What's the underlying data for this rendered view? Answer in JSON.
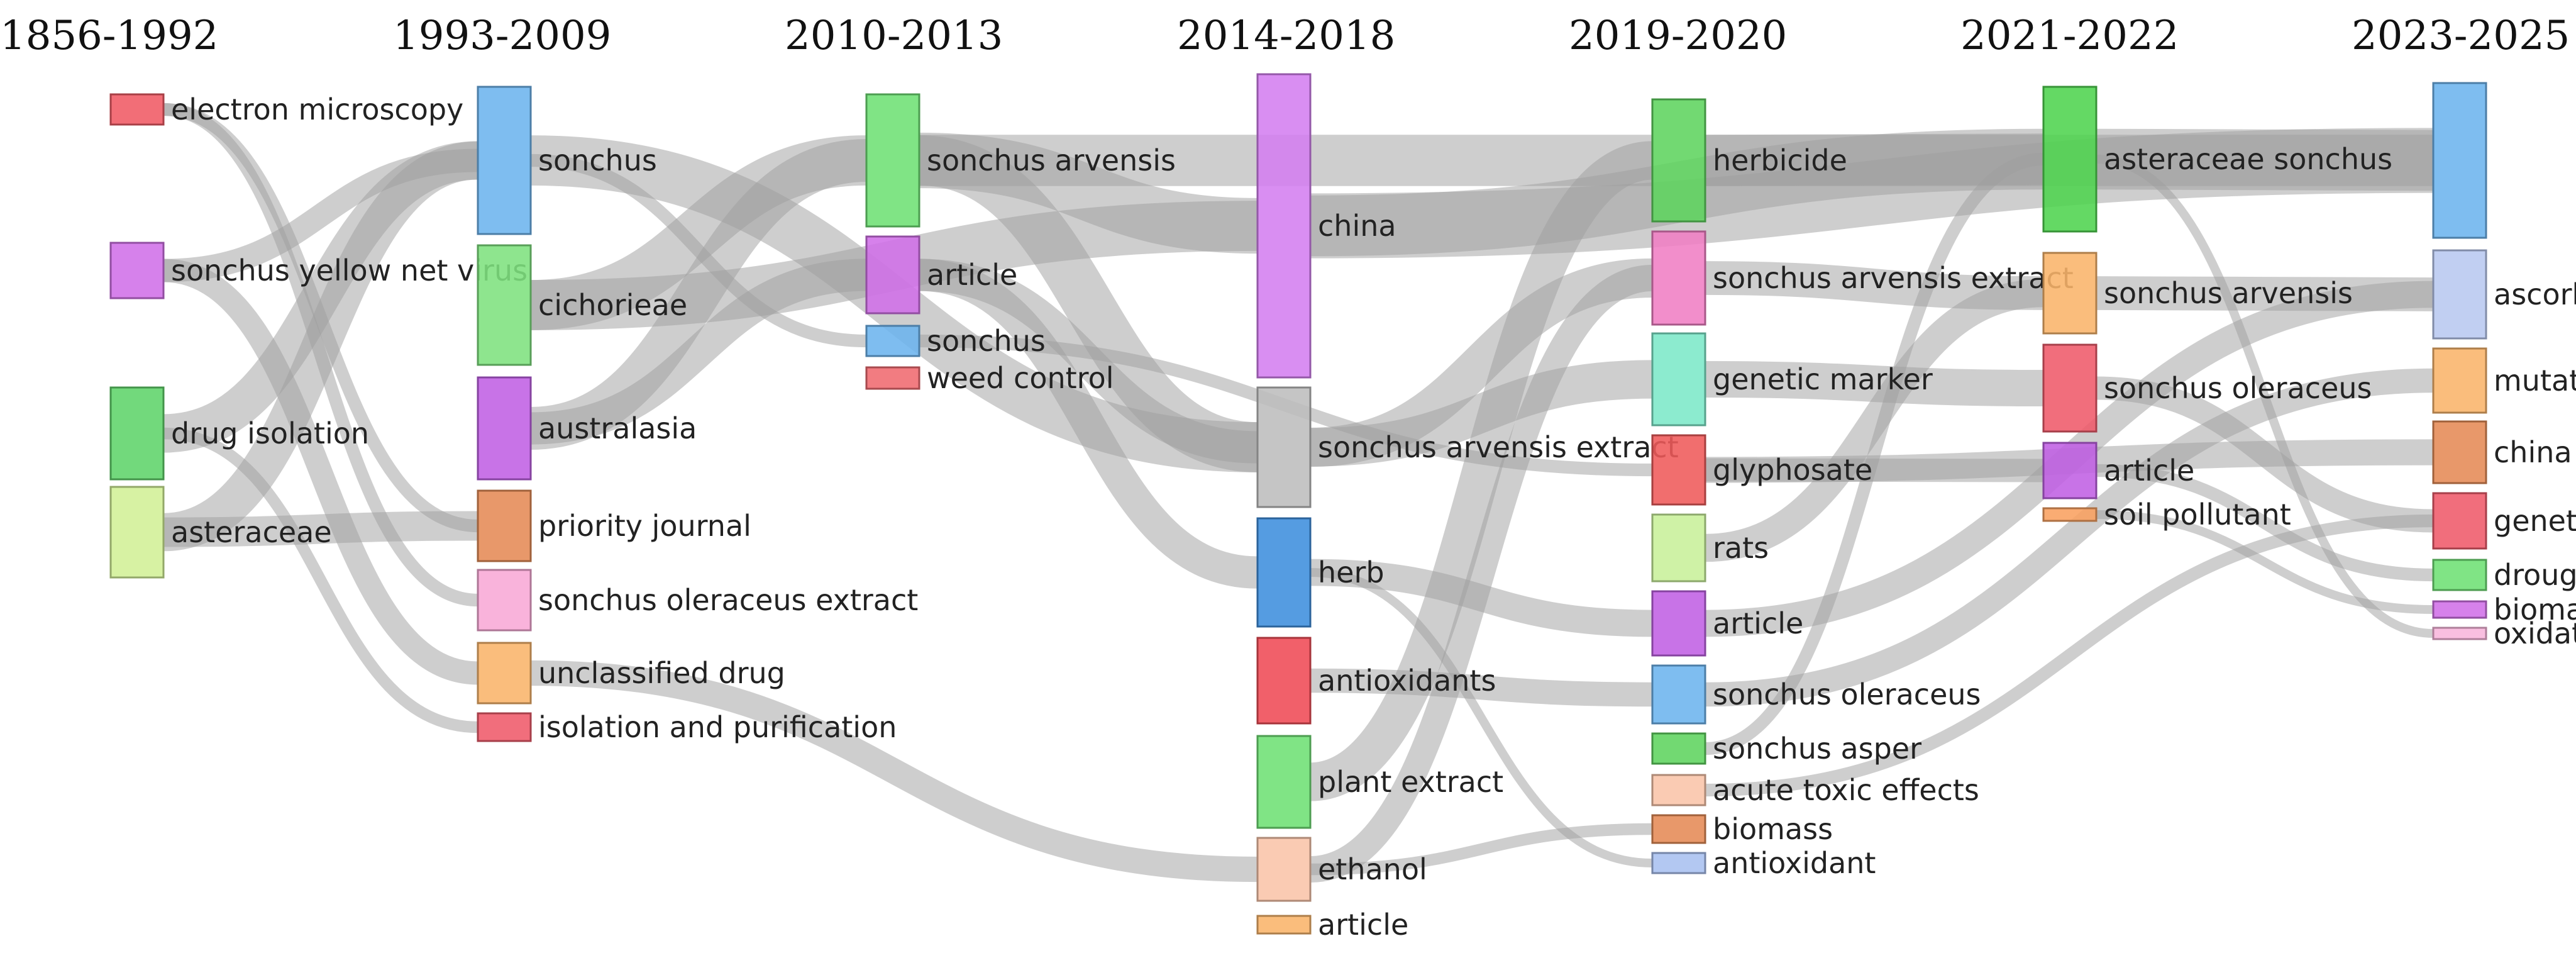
{
  "periods": [
    "1856-1992",
    "1993-2009",
    "2010-2013",
    "2014-2018",
    "2019-2020",
    "2021-2022",
    "2023-2025"
  ],
  "columns": [
    [
      {
        "id": "c0n0",
        "label": "electron microscopy",
        "color": "#f05a64"
      },
      {
        "id": "c0n1",
        "label": "sonchus yellow net virus",
        "color": "#d070e8"
      },
      {
        "id": "c0n2",
        "label": "drug isolation",
        "color": "#5fd46a"
      },
      {
        "id": "c0n3",
        "label": "asteraceae",
        "color": "#d2f096"
      }
    ],
    [
      {
        "id": "c1n0",
        "label": "sonchus",
        "color": "#6cb4ee"
      },
      {
        "id": "c1n1",
        "label": "cichorieae",
        "color": "#7ee17e"
      },
      {
        "id": "c1n2",
        "label": "australasia",
        "color": "#c060e4"
      },
      {
        "id": "c1n3",
        "label": "priority journal",
        "color": "#e58a55"
      },
      {
        "id": "c1n4",
        "label": "sonchus oleraceus extract",
        "color": "#f8a9d6"
      },
      {
        "id": "c1n5",
        "label": "unclassified drug",
        "color": "#f9b46a"
      },
      {
        "id": "c1n6",
        "label": "isolation and purification",
        "color": "#ef5a6a"
      }
    ],
    [
      {
        "id": "c2n0",
        "label": "sonchus arvensis",
        "color": "#6ee074"
      },
      {
        "id": "c2n1",
        "label": "article",
        "color": "#d070e8"
      },
      {
        "id": "c2n2",
        "label": "sonchus",
        "color": "#6cb4ee"
      },
      {
        "id": "c2n3",
        "label": "weed control",
        "color": "#f06a70"
      }
    ],
    [
      {
        "id": "c3n0",
        "label": "china",
        "color": "#d47ef0"
      },
      {
        "id": "c3n1",
        "label": "sonchus arvensis extract",
        "color": "#bdbdbd"
      },
      {
        "id": "c3n2",
        "label": "herb",
        "color": "#3d8edd"
      },
      {
        "id": "c3n3",
        "label": "antioxidants",
        "color": "#ef4a55"
      },
      {
        "id": "c3n4",
        "label": "plant extract",
        "color": "#6ee074"
      },
      {
        "id": "c3n5",
        "label": "ethanol",
        "color": "#f9c4a8"
      },
      {
        "id": "c3n6",
        "label": "article",
        "color": "#f9b46a"
      }
    ],
    [
      {
        "id": "c4n0",
        "label": "herbicide",
        "color": "#5ed45e"
      },
      {
        "id": "c4n1",
        "label": "sonchus arvensis extract",
        "color": "#f07ec4"
      },
      {
        "id": "c4n2",
        "label": "genetic marker",
        "color": "#7ce8c8"
      },
      {
        "id": "c4n3",
        "label": "glyphosate",
        "color": "#ef5a5a"
      },
      {
        "id": "c4n4",
        "label": "rats",
        "color": "#c8f09a"
      },
      {
        "id": "c4n5",
        "label": "article",
        "color": "#c060e4"
      },
      {
        "id": "c4n6",
        "label": "sonchus oleraceus",
        "color": "#6cb4ee"
      },
      {
        "id": "c4n7",
        "label": "sonchus asper",
        "color": "#5ed45e"
      },
      {
        "id": "c4n8",
        "label": "acute toxic effects",
        "color": "#f9c4a8"
      },
      {
        "id": "c4n9",
        "label": "biomass",
        "color": "#e58a55"
      },
      {
        "id": "c4n10",
        "label": "antioxidant",
        "color": "#a8c0f0"
      }
    ],
    [
      {
        "id": "c5n0",
        "label": "asteraceae sonchus",
        "color": "#4ed44e"
      },
      {
        "id": "c5n1",
        "label": "sonchus arvensis",
        "color": "#f9b46a"
      },
      {
        "id": "c5n2",
        "label": "sonchus oleraceus",
        "color": "#ef5a6a"
      },
      {
        "id": "c5n3",
        "label": "article",
        "color": "#c060e4"
      },
      {
        "id": "c5n4",
        "label": "soil pollutant",
        "color": "#f9a060"
      }
    ],
    [
      {
        "id": "c6n0",
        "label": "",
        "color": "#6cb4ee"
      },
      {
        "id": "c6n1",
        "label": "ascorbic acid",
        "color": "#b8c8f0"
      },
      {
        "id": "c6n2",
        "label": "mutation",
        "color": "#f9b46a"
      },
      {
        "id": "c6n3",
        "label": "china",
        "color": "#e58a55"
      },
      {
        "id": "c6n4",
        "label": "genetics",
        "color": "#ef5a6a"
      },
      {
        "id": "c6n5",
        "label": "drought",
        "color": "#6ee074"
      },
      {
        "id": "c6n6",
        "label": "biomass",
        "color": "#d070e8"
      },
      {
        "id": "c6n7",
        "label": "oxidative stress",
        "color": "#f8b6dc"
      }
    ]
  ],
  "links": [
    [
      "c0n0",
      "c1n3"
    ],
    [
      "c0n0",
      "c1n4"
    ],
    [
      "c0n1",
      "c1n0"
    ],
    [
      "c0n1",
      "c1n5"
    ],
    [
      "c0n2",
      "c1n0"
    ],
    [
      "c0n2",
      "c1n6"
    ],
    [
      "c0n3",
      "c1n0"
    ],
    [
      "c0n3",
      "c1n3"
    ],
    [
      "c1n0",
      "c2n2"
    ],
    [
      "c1n0",
      "c3n1"
    ],
    [
      "c1n1",
      "c2n0"
    ],
    [
      "c1n1",
      "c3n0"
    ],
    [
      "c1n2",
      "c2n0"
    ],
    [
      "c1n2",
      "c2n1"
    ],
    [
      "c1n5",
      "c3n5"
    ],
    [
      "c2n0",
      "c3n0"
    ],
    [
      "c2n0",
      "c4n0"
    ],
    [
      "c2n1",
      "c3n1"
    ],
    [
      "c2n0",
      "c3n1"
    ],
    [
      "c2n2",
      "c4n3"
    ],
    [
      "c2n1",
      "c3n2"
    ],
    [
      "c3n0",
      "c5n0"
    ],
    [
      "c3n0",
      "c6n0"
    ],
    [
      "c3n1",
      "c4n1"
    ],
    [
      "c3n1",
      "c4n2"
    ],
    [
      "c3n2",
      "c4n5"
    ],
    [
      "c3n3",
      "c4n6"
    ],
    [
      "c3n4",
      "c4n0"
    ],
    [
      "c3n5",
      "c4n1"
    ],
    [
      "c3n5",
      "c4n9"
    ],
    [
      "c3n2",
      "c4n10"
    ],
    [
      "c4n0",
      "c5n0"
    ],
    [
      "c4n0",
      "c6n0"
    ],
    [
      "c4n1",
      "c5n1"
    ],
    [
      "c4n2",
      "c5n2"
    ],
    [
      "c4n3",
      "c5n3"
    ],
    [
      "c4n4",
      "c5n1"
    ],
    [
      "c4n5",
      "c6n1"
    ],
    [
      "c4n6",
      "c6n2"
    ],
    [
      "c4n7",
      "c5n0"
    ],
    [
      "c4n8",
      "c6n4"
    ],
    [
      "c4n3",
      "c6n3"
    ],
    [
      "c5n0",
      "c6n0"
    ],
    [
      "c5n1",
      "c6n1"
    ],
    [
      "c5n2",
      "c6n4"
    ],
    [
      "c5n3",
      "c6n5"
    ],
    [
      "c5n4",
      "c6n6"
    ],
    [
      "c5n0",
      "c6n7"
    ]
  ]
}
